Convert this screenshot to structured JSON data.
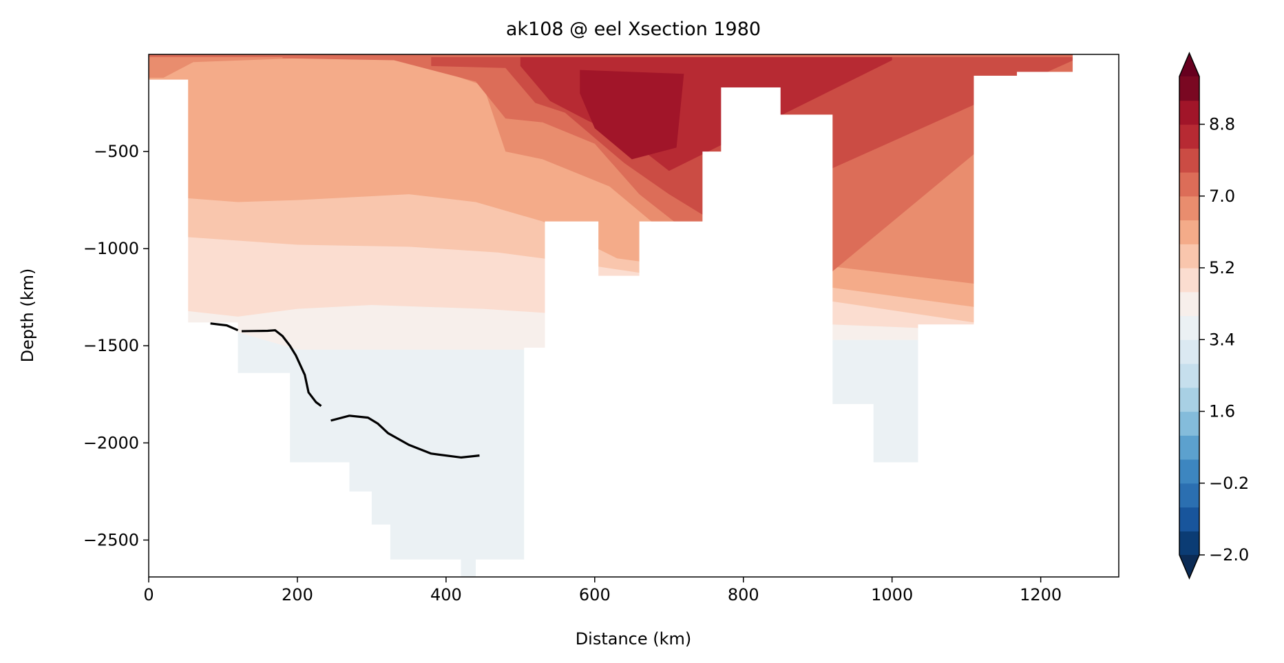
{
  "chart_data": {
    "type": "heatmap",
    "title": "ak108 @ eel Xsection 1980",
    "xlabel": "Distance (km)",
    "ylabel": "Depth (km)",
    "xlim": [
      0,
      1305
    ],
    "ylim": [
      -2690,
      0
    ],
    "x_ticks": [
      0,
      200,
      400,
      600,
      800,
      1000,
      1200
    ],
    "x_tick_labels": [
      "0",
      "200",
      "400",
      "600",
      "800",
      "1000",
      "1200"
    ],
    "y_ticks": [
      -500,
      -1000,
      -1500,
      -2000,
      -2500
    ],
    "y_tick_labels": [
      "−500",
      "−1000",
      "−1500",
      "−2000",
      "−2500"
    ],
    "grid": false,
    "colorbar": {
      "colormap": "RdBu_r",
      "vmin": -2.0,
      "vmax": 10.0,
      "levels": [
        -2.0,
        -1.4,
        -0.8,
        -0.2,
        0.4,
        1.0,
        1.6,
        2.2,
        2.8,
        3.4,
        4.0,
        4.6,
        5.2,
        5.8,
        6.4,
        7.0,
        7.6,
        8.2,
        8.8,
        9.4,
        10.0
      ],
      "colors": [
        "#0b3c74",
        "#18559c",
        "#2b6fb1",
        "#3d86c0",
        "#5ca1ce",
        "#84bcdb",
        "#a8d0e4",
        "#c6dfed",
        "#dbe9f2",
        "#ebf1f4",
        "#f7efeb",
        "#fbddd0",
        "#f9c6ad",
        "#f4ab89",
        "#e98d6e",
        "#dc6d58",
        "#cb4c44",
        "#b72a33",
        "#a11529",
        "#7a0822"
      ],
      "extend": "both",
      "under_color": "#0b2b55",
      "over_color": "#67001f",
      "tick_values": [
        -2.0,
        -0.2,
        1.6,
        3.4,
        5.2,
        7.0,
        8.8
      ],
      "tick_labels": [
        "−2.0",
        "−0.2",
        "1.6",
        "3.4",
        "5.2",
        "7.0",
        "8.8"
      ]
    },
    "bands": [
      {
        "level": 4.0,
        "color": "#f7efeb",
        "top": [
          [
            120,
            -1430
          ],
          [
            200,
            -1520
          ],
          [
            630,
            -1520
          ],
          [
            900,
            -1470
          ],
          [
            1110,
            -1470
          ]
        ]
      },
      {
        "level": 4.6,
        "color": "#fbddd0",
        "top": [
          [
            50,
            -1320
          ],
          [
            120,
            -1350
          ],
          [
            200,
            -1310
          ],
          [
            300,
            -1290
          ],
          [
            450,
            -1310
          ],
          [
            530,
            -1330
          ],
          [
            1110,
            -1420
          ]
        ]
      },
      {
        "level": 5.2,
        "color": "#f9c6ad",
        "top": [
          [
            50,
            -940
          ],
          [
            200,
            -980
          ],
          [
            350,
            -990
          ],
          [
            470,
            -1020
          ],
          [
            530,
            -1050
          ],
          [
            1110,
            -1380
          ]
        ]
      },
      {
        "level": 5.8,
        "color": "#f4ab89",
        "top": [
          [
            50,
            -740
          ],
          [
            120,
            -760
          ],
          [
            200,
            -750
          ],
          [
            300,
            -730
          ],
          [
            350,
            -720
          ],
          [
            440,
            -760
          ],
          [
            530,
            -860
          ],
          [
            630,
            -1050
          ],
          [
            1110,
            -1300
          ]
        ]
      },
      {
        "level": 6.4,
        "color": "#e98d6e",
        "top": [
          [
            20,
            -120
          ],
          [
            60,
            -40
          ],
          [
            200,
            -20
          ],
          [
            350,
            -30
          ],
          [
            450,
            -160
          ],
          [
            480,
            -500
          ],
          [
            530,
            -540
          ],
          [
            620,
            -680
          ],
          [
            720,
            -1000
          ],
          [
            1110,
            -1180
          ]
        ]
      },
      {
        "level": 7.0,
        "color": "#dc6d58",
        "top": [
          [
            180,
            -20
          ],
          [
            330,
            -30
          ],
          [
            440,
            -140
          ],
          [
            480,
            -330
          ],
          [
            530,
            -350
          ],
          [
            600,
            -460
          ],
          [
            660,
            -720
          ],
          [
            720,
            -900
          ],
          [
            900,
            -1180
          ],
          [
            1250,
            -70
          ]
        ]
      },
      {
        "level": 7.6,
        "color": "#cb4c44",
        "top": [
          [
            380,
            -60
          ],
          [
            480,
            -70
          ],
          [
            520,
            -250
          ],
          [
            560,
            -300
          ],
          [
            640,
            -560
          ],
          [
            700,
            -720
          ],
          [
            760,
            -860
          ],
          [
            1250,
            -20
          ]
        ]
      },
      {
        "level": 8.2,
        "color": "#b72a33",
        "top": [
          [
            500,
            -60
          ],
          [
            540,
            -240
          ],
          [
            590,
            -340
          ],
          [
            650,
            -450
          ],
          [
            700,
            -600
          ],
          [
            1000,
            -30
          ]
        ]
      },
      {
        "level": 8.8,
        "color": "#a11529",
        "top": [
          [
            580,
            -80
          ],
          [
            720,
            -100
          ],
          [
            710,
            -480
          ],
          [
            650,
            -540
          ],
          [
            600,
            -380
          ],
          [
            580,
            -200
          ]
        ]
      }
    ],
    "line": {
      "color": "#000000",
      "segments": [
        {
          "x": [
            83,
            105,
            120
          ],
          "y": [
            -1385,
            -1395,
            -1420
          ]
        },
        {
          "x": [
            125,
            140,
            160,
            170,
            180,
            190,
            198,
            210,
            215,
            225,
            232
          ],
          "y": [
            -1425,
            -1424,
            -1423,
            -1420,
            -1450,
            -1500,
            -1550,
            -1650,
            -1740,
            -1790,
            -1810
          ]
        },
        {
          "x": [
            245,
            270,
            295,
            308,
            322,
            350,
            380,
            420,
            445
          ],
          "y": [
            -1885,
            -1860,
            -1870,
            -1900,
            -1950,
            -2010,
            -2055,
            -2075,
            -2065
          ]
        }
      ]
    },
    "bathymetry_profile": [
      [
        0,
        -130
      ],
      [
        53,
        -130
      ],
      [
        53,
        -1380
      ],
      [
        120,
        -1380
      ],
      [
        120,
        -1640
      ],
      [
        190,
        -1640
      ],
      [
        190,
        -2100
      ],
      [
        270,
        -2100
      ],
      [
        270,
        -2250
      ],
      [
        300,
        -2250
      ],
      [
        300,
        -2420
      ],
      [
        325,
        -2420
      ],
      [
        325,
        -2600
      ],
      [
        420,
        -2600
      ],
      [
        420,
        -2690
      ],
      [
        440,
        -2690
      ],
      [
        440,
        -2600
      ],
      [
        505,
        -2600
      ],
      [
        505,
        -1510
      ],
      [
        533,
        -1510
      ],
      [
        533,
        -860
      ],
      [
        605,
        -860
      ],
      [
        605,
        -1140
      ],
      [
        660,
        -1140
      ],
      [
        660,
        -860
      ],
      [
        745,
        -860
      ],
      [
        745,
        -500
      ],
      [
        770,
        -500
      ],
      [
        770,
        -170
      ],
      [
        850,
        -170
      ],
      [
        850,
        -310
      ],
      [
        920,
        -310
      ],
      [
        920,
        -1800
      ],
      [
        975,
        -1800
      ],
      [
        975,
        -2100
      ],
      [
        1035,
        -2100
      ],
      [
        1035,
        -1390
      ],
      [
        1110,
        -1390
      ],
      [
        1110,
        -110
      ],
      [
        1168,
        -110
      ],
      [
        1168,
        -90
      ],
      [
        1243,
        -90
      ],
      [
        1243,
        -10
      ]
    ]
  }
}
